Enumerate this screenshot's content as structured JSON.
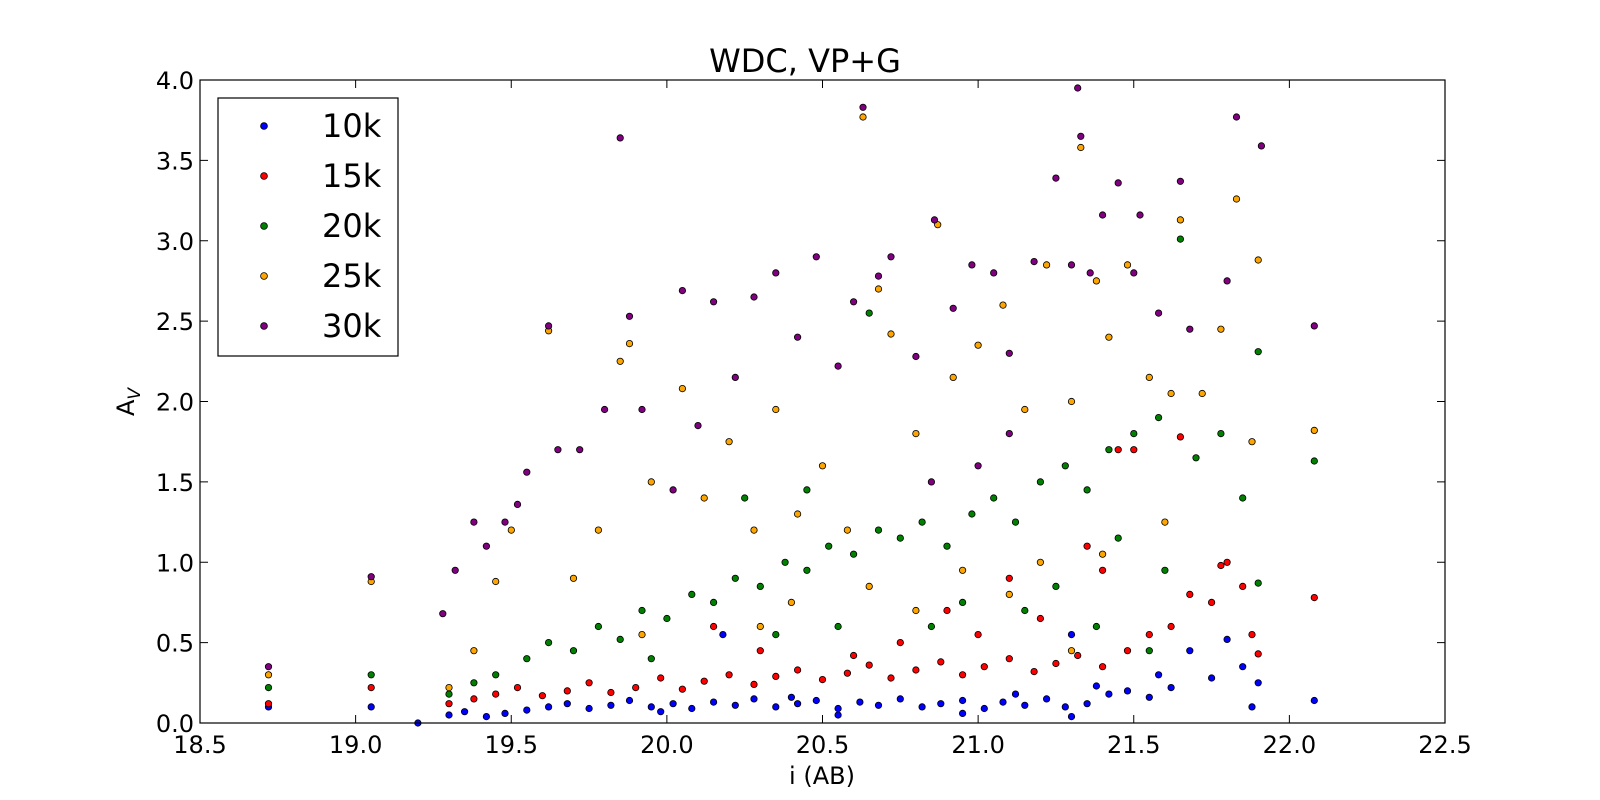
{
  "chart_data": {
    "type": "scatter",
    "title": "WDC, VP+G",
    "xlabel": "i (AB)",
    "ylabel": "A",
    "ylabel_sub": "V",
    "xlim": [
      18.5,
      22.5
    ],
    "ylim": [
      0.0,
      4.0
    ],
    "xticks": [
      "18.5",
      "19.0",
      "19.5",
      "20.0",
      "20.5",
      "21.0",
      "21.5",
      "22.0",
      "22.5"
    ],
    "yticks": [
      "0.0",
      "0.5",
      "1.0",
      "1.5",
      "2.0",
      "2.5",
      "3.0",
      "3.5",
      "4.0"
    ],
    "legend_position": "top-left",
    "grid": false,
    "series": [
      {
        "name": "10k",
        "color": "#0000ff",
        "points": [
          [
            18.72,
            0.1
          ],
          [
            19.05,
            0.1
          ],
          [
            19.2,
            0.0
          ],
          [
            19.3,
            0.05
          ],
          [
            19.35,
            0.07
          ],
          [
            19.42,
            0.04
          ],
          [
            19.48,
            0.06
          ],
          [
            19.55,
            0.08
          ],
          [
            19.62,
            0.1
          ],
          [
            19.68,
            0.12
          ],
          [
            19.75,
            0.09
          ],
          [
            19.82,
            0.11
          ],
          [
            19.88,
            0.14
          ],
          [
            19.95,
            0.1
          ],
          [
            20.02,
            0.12
          ],
          [
            20.08,
            0.09
          ],
          [
            20.15,
            0.13
          ],
          [
            20.22,
            0.11
          ],
          [
            20.28,
            0.15
          ],
          [
            20.35,
            0.1
          ],
          [
            20.42,
            0.12
          ],
          [
            20.48,
            0.14
          ],
          [
            20.55,
            0.09
          ],
          [
            20.62,
            0.13
          ],
          [
            20.68,
            0.11
          ],
          [
            20.75,
            0.15
          ],
          [
            20.82,
            0.1
          ],
          [
            20.88,
            0.12
          ],
          [
            20.95,
            0.14
          ],
          [
            21.02,
            0.09
          ],
          [
            21.08,
            0.13
          ],
          [
            21.15,
            0.11
          ],
          [
            21.22,
            0.15
          ],
          [
            21.28,
            0.1
          ],
          [
            21.35,
            0.12
          ],
          [
            21.42,
            0.18
          ],
          [
            21.48,
            0.2
          ],
          [
            21.55,
            0.16
          ],
          [
            21.62,
            0.22
          ],
          [
            21.68,
            0.45
          ],
          [
            21.75,
            0.28
          ],
          [
            21.8,
            0.52
          ],
          [
            21.85,
            0.35
          ],
          [
            21.88,
            0.1
          ],
          [
            21.9,
            0.25
          ],
          [
            22.08,
            0.14
          ],
          [
            20.55,
            0.05
          ],
          [
            20.95,
            0.06
          ],
          [
            21.3,
            0.04
          ],
          [
            19.98,
            0.07
          ],
          [
            20.4,
            0.16
          ],
          [
            21.12,
            0.18
          ],
          [
            21.38,
            0.23
          ],
          [
            21.58,
            0.3
          ],
          [
            20.18,
            0.55
          ],
          [
            21.3,
            0.55
          ]
        ]
      },
      {
        "name": "15k",
        "color": "#ff0000",
        "points": [
          [
            18.72,
            0.12
          ],
          [
            19.05,
            0.22
          ],
          [
            19.3,
            0.12
          ],
          [
            19.38,
            0.15
          ],
          [
            19.45,
            0.18
          ],
          [
            19.52,
            0.22
          ],
          [
            19.6,
            0.17
          ],
          [
            19.68,
            0.2
          ],
          [
            19.75,
            0.25
          ],
          [
            19.82,
            0.19
          ],
          [
            19.9,
            0.22
          ],
          [
            19.98,
            0.28
          ],
          [
            20.05,
            0.21
          ],
          [
            20.12,
            0.26
          ],
          [
            20.2,
            0.3
          ],
          [
            20.28,
            0.24
          ],
          [
            20.35,
            0.29
          ],
          [
            20.42,
            0.33
          ],
          [
            20.5,
            0.27
          ],
          [
            20.58,
            0.31
          ],
          [
            20.65,
            0.36
          ],
          [
            20.72,
            0.28
          ],
          [
            20.8,
            0.33
          ],
          [
            20.88,
            0.38
          ],
          [
            20.95,
            0.3
          ],
          [
            21.02,
            0.35
          ],
          [
            21.1,
            0.4
          ],
          [
            21.18,
            0.32
          ],
          [
            21.25,
            0.37
          ],
          [
            21.32,
            0.42
          ],
          [
            21.4,
            0.35
          ],
          [
            21.48,
            0.45
          ],
          [
            21.55,
            0.55
          ],
          [
            21.62,
            0.6
          ],
          [
            21.68,
            0.8
          ],
          [
            21.75,
            0.75
          ],
          [
            21.8,
            1.0
          ],
          [
            21.85,
            0.85
          ],
          [
            21.88,
            0.55
          ],
          [
            21.9,
            0.43
          ],
          [
            22.08,
            0.78
          ],
          [
            20.3,
            0.45
          ],
          [
            20.6,
            0.42
          ],
          [
            21.0,
            0.55
          ],
          [
            21.2,
            0.65
          ],
          [
            21.4,
            0.95
          ],
          [
            21.5,
            1.7
          ],
          [
            21.65,
            1.78
          ],
          [
            21.78,
            0.98
          ],
          [
            20.15,
            0.6
          ],
          [
            20.75,
            0.5
          ],
          [
            21.35,
            1.1
          ],
          [
            21.45,
            1.7
          ],
          [
            20.9,
            0.7
          ],
          [
            21.1,
            0.9
          ]
        ]
      },
      {
        "name": "20k",
        "color": "#008000",
        "points": [
          [
            18.72,
            0.22
          ],
          [
            19.05,
            0.3
          ],
          [
            19.3,
            0.18
          ],
          [
            19.38,
            0.25
          ],
          [
            19.45,
            0.3
          ],
          [
            19.55,
            0.4
          ],
          [
            19.62,
            0.5
          ],
          [
            19.7,
            0.45
          ],
          [
            19.78,
            0.6
          ],
          [
            19.85,
            0.52
          ],
          [
            19.92,
            0.7
          ],
          [
            20.0,
            0.65
          ],
          [
            20.08,
            0.8
          ],
          [
            20.15,
            0.75
          ],
          [
            20.22,
            0.9
          ],
          [
            20.3,
            0.85
          ],
          [
            20.38,
            1.0
          ],
          [
            20.45,
            0.95
          ],
          [
            20.52,
            1.1
          ],
          [
            20.6,
            1.05
          ],
          [
            20.68,
            1.2
          ],
          [
            20.75,
            1.15
          ],
          [
            20.82,
            1.25
          ],
          [
            20.9,
            1.1
          ],
          [
            20.98,
            1.3
          ],
          [
            21.05,
            1.4
          ],
          [
            21.12,
            1.25
          ],
          [
            21.2,
            1.5
          ],
          [
            21.28,
            1.6
          ],
          [
            21.35,
            1.45
          ],
          [
            21.42,
            1.7
          ],
          [
            21.5,
            1.8
          ],
          [
            21.58,
            1.9
          ],
          [
            21.65,
            3.01
          ],
          [
            21.7,
            1.65
          ],
          [
            21.78,
            1.8
          ],
          [
            21.85,
            1.4
          ],
          [
            21.9,
            2.31
          ],
          [
            22.08,
            1.63
          ],
          [
            20.65,
            2.55
          ],
          [
            20.45,
            1.45
          ],
          [
            20.25,
            1.4
          ],
          [
            20.55,
            0.6
          ],
          [
            20.95,
            0.75
          ],
          [
            21.25,
            0.85
          ],
          [
            21.45,
            1.15
          ],
          [
            21.6,
            0.95
          ],
          [
            19.95,
            0.4
          ],
          [
            20.35,
            0.55
          ],
          [
            20.85,
            0.6
          ],
          [
            21.15,
            0.7
          ],
          [
            21.38,
            0.6
          ],
          [
            21.55,
            0.45
          ],
          [
            21.9,
            0.87
          ]
        ]
      },
      {
        "name": "25k",
        "color": "#ffa500",
        "points": [
          [
            18.72,
            0.3
          ],
          [
            19.05,
            0.88
          ],
          [
            19.3,
            0.22
          ],
          [
            19.38,
            0.45
          ],
          [
            19.45,
            0.88
          ],
          [
            19.5,
            1.2
          ],
          [
            19.62,
            2.44
          ],
          [
            19.7,
            0.9
          ],
          [
            19.78,
            1.2
          ],
          [
            19.85,
            2.25
          ],
          [
            19.88,
            2.36
          ],
          [
            19.95,
            1.5
          ],
          [
            20.05,
            2.08
          ],
          [
            20.12,
            1.4
          ],
          [
            20.2,
            1.75
          ],
          [
            20.28,
            1.2
          ],
          [
            20.35,
            1.95
          ],
          [
            20.42,
            1.3
          ],
          [
            20.5,
            1.6
          ],
          [
            20.58,
            1.2
          ],
          [
            20.63,
            3.77
          ],
          [
            20.68,
            2.7
          ],
          [
            20.72,
            2.42
          ],
          [
            20.8,
            1.8
          ],
          [
            20.87,
            3.1
          ],
          [
            20.92,
            2.15
          ],
          [
            21.0,
            2.35
          ],
          [
            21.08,
            2.6
          ],
          [
            21.15,
            1.95
          ],
          [
            21.22,
            2.85
          ],
          [
            21.3,
            2.0
          ],
          [
            21.33,
            3.58
          ],
          [
            21.38,
            2.75
          ],
          [
            21.42,
            2.4
          ],
          [
            21.48,
            2.85
          ],
          [
            21.55,
            2.15
          ],
          [
            21.62,
            2.05
          ],
          [
            21.65,
            3.13
          ],
          [
            21.72,
            2.05
          ],
          [
            21.78,
            2.45
          ],
          [
            21.83,
            3.26
          ],
          [
            21.88,
            1.75
          ],
          [
            21.9,
            2.88
          ],
          [
            22.08,
            1.82
          ],
          [
            20.4,
            0.75
          ],
          [
            20.65,
            0.85
          ],
          [
            20.95,
            0.95
          ],
          [
            21.2,
            1.0
          ],
          [
            21.4,
            1.05
          ],
          [
            21.6,
            1.25
          ],
          [
            19.92,
            0.55
          ],
          [
            20.3,
            0.6
          ],
          [
            20.8,
            0.7
          ],
          [
            21.1,
            0.8
          ],
          [
            21.3,
            0.45
          ]
        ]
      },
      {
        "name": "30k",
        "color": "#800080",
        "points": [
          [
            18.72,
            0.35
          ],
          [
            19.05,
            0.91
          ],
          [
            19.28,
            0.68
          ],
          [
            19.32,
            0.95
          ],
          [
            19.38,
            1.25
          ],
          [
            19.42,
            1.1
          ],
          [
            19.48,
            1.25
          ],
          [
            19.52,
            1.36
          ],
          [
            19.55,
            1.56
          ],
          [
            19.62,
            2.47
          ],
          [
            19.65,
            1.7
          ],
          [
            19.72,
            1.7
          ],
          [
            19.8,
            1.95
          ],
          [
            19.85,
            3.64
          ],
          [
            19.88,
            2.53
          ],
          [
            19.92,
            1.95
          ],
          [
            20.02,
            1.45
          ],
          [
            20.05,
            2.69
          ],
          [
            20.1,
            1.85
          ],
          [
            20.15,
            2.62
          ],
          [
            20.22,
            2.15
          ],
          [
            20.28,
            2.65
          ],
          [
            20.35,
            2.8
          ],
          [
            20.42,
            2.4
          ],
          [
            20.48,
            2.9
          ],
          [
            20.55,
            2.22
          ],
          [
            20.6,
            2.62
          ],
          [
            20.63,
            3.83
          ],
          [
            20.68,
            2.78
          ],
          [
            20.72,
            2.9
          ],
          [
            20.8,
            2.28
          ],
          [
            20.86,
            3.13
          ],
          [
            20.92,
            2.58
          ],
          [
            20.98,
            2.85
          ],
          [
            21.05,
            2.8
          ],
          [
            21.1,
            2.3
          ],
          [
            21.18,
            2.87
          ],
          [
            21.25,
            3.39
          ],
          [
            21.3,
            2.85
          ],
          [
            21.32,
            3.95
          ],
          [
            21.33,
            3.65
          ],
          [
            21.36,
            2.8
          ],
          [
            21.4,
            3.16
          ],
          [
            21.45,
            3.36
          ],
          [
            21.5,
            2.8
          ],
          [
            21.52,
            3.16
          ],
          [
            21.58,
            2.55
          ],
          [
            21.65,
            3.37
          ],
          [
            21.68,
            2.45
          ],
          [
            21.8,
            2.75
          ],
          [
            21.83,
            3.77
          ],
          [
            21.91,
            3.59
          ],
          [
            22.08,
            2.47
          ],
          [
            21.1,
            1.8
          ],
          [
            21.0,
            1.6
          ],
          [
            20.85,
            1.5
          ]
        ]
      }
    ]
  }
}
